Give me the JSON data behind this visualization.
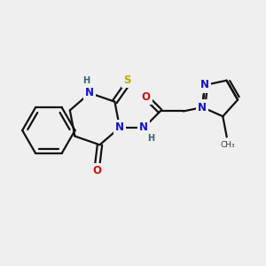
{
  "bg": "#efefef",
  "bc": "#111111",
  "lw": 1.6,
  "N_color": "#1111cc",
  "O_color": "#cc1111",
  "S_color": "#bbaa00",
  "H_color": "#336666",
  "fs": 8.5,
  "fss": 7.0,
  "xlim": [
    0,
    10
  ],
  "ylim": [
    1,
    9
  ]
}
